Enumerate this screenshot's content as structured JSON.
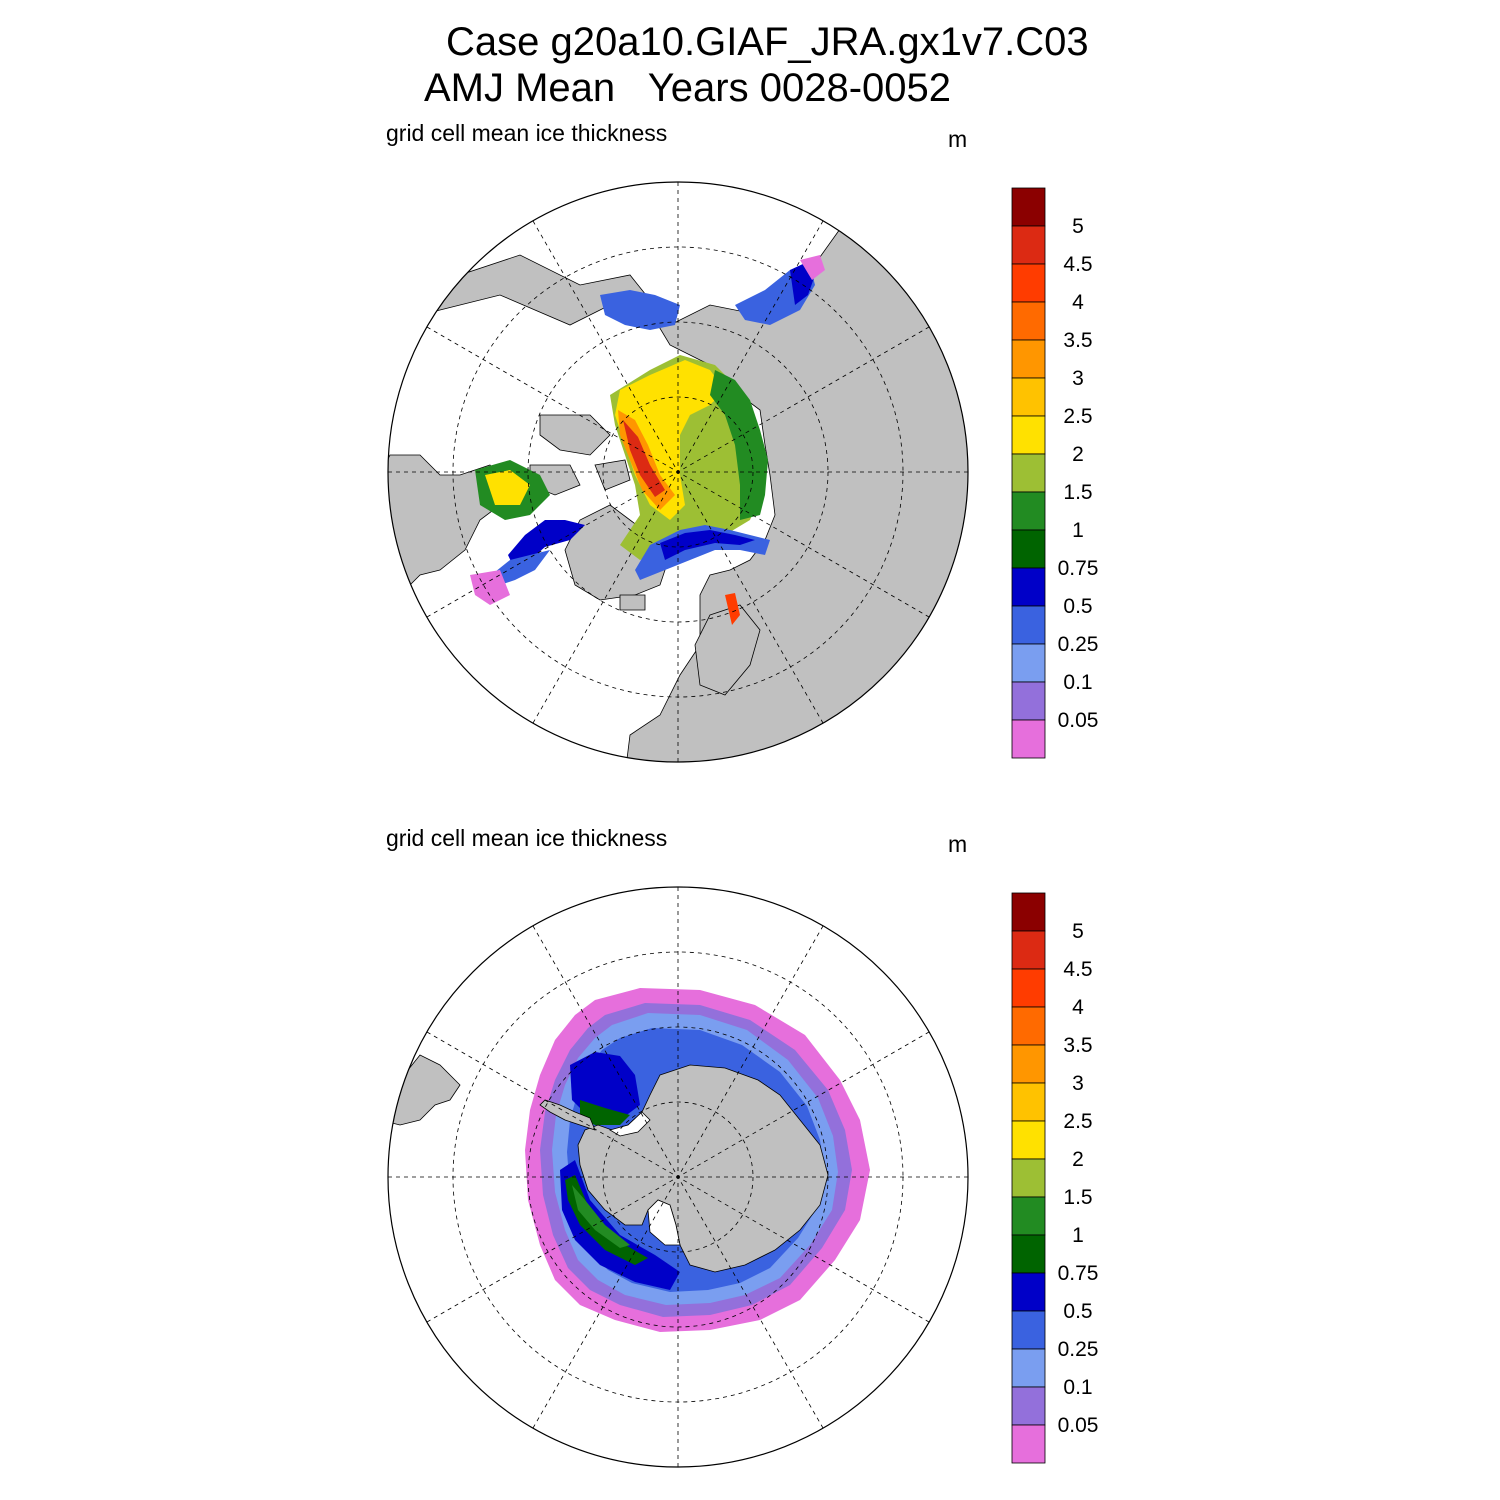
{
  "figure": {
    "title_line1": "Case g20a10.GIAF_JRA.gx1v7.C03",
    "title_line2": "AMJ Mean   Years 0028-0052"
  },
  "panels": [
    {
      "id": "north",
      "label": "grid cell mean ice thickness",
      "unit": "m"
    },
    {
      "id": "south",
      "label": "grid cell mean ice thickness",
      "unit": "m"
    }
  ],
  "colorbar": {
    "tick_labels": [
      "5",
      "4.5",
      "4",
      "3.5",
      "3",
      "2.5",
      "2",
      "1.5",
      "1",
      "0.75",
      "0.5",
      "0.25",
      "0.1",
      "0.05"
    ],
    "colors_top_to_bottom": [
      "#8b0000",
      "#dc2a13",
      "#ff3c00",
      "#ff6a00",
      "#ff9600",
      "#ffc200",
      "#ffe100",
      "#9dbf34",
      "#228b22",
      "#006400",
      "#0000c8",
      "#3a62e0",
      "#7a9ef0",
      "#9370db",
      "#e66fdc"
    ]
  },
  "colors": {
    "land": "#c0c0c0",
    "ocean": "#ffffff",
    "grid": "#000000"
  }
}
